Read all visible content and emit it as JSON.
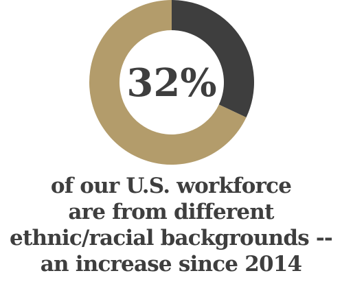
{
  "chart_data": {
    "type": "pie",
    "variant": "donut",
    "slices": [
      {
        "value": 32,
        "color": "#3e3e3e"
      },
      {
        "value": 68,
        "color": "#b39c6b"
      }
    ],
    "center_label": "32%",
    "center_label_color": "#3e3e3e"
  },
  "caption": {
    "lines": [
      "of our U.S. workforce",
      "are from different",
      "ethnic/racial backgrounds --",
      "an increase since 2014"
    ],
    "color": "#3e3e3e"
  }
}
